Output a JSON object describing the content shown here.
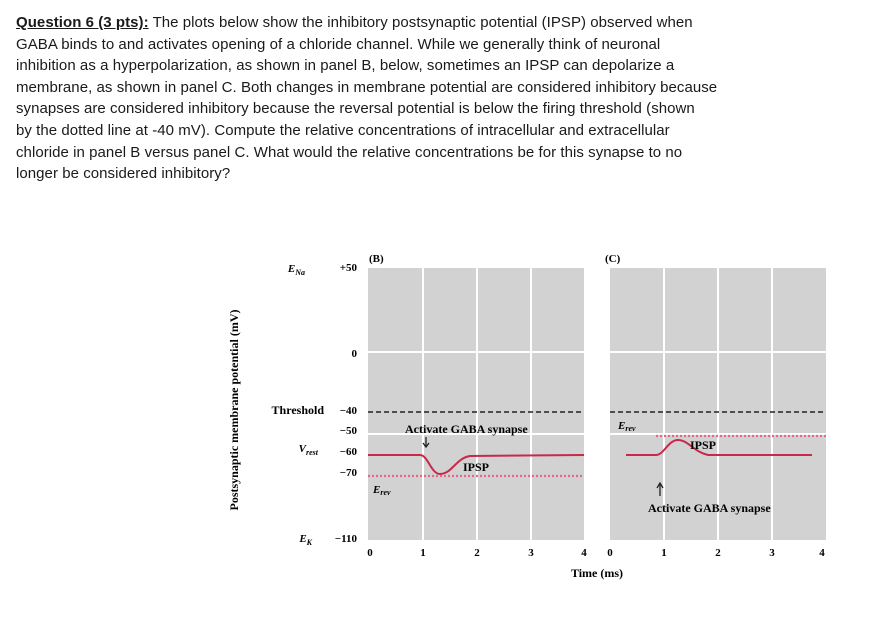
{
  "question": {
    "heading": "Question 6 (3 pts):",
    "lines": [
      " The plots below show the inhibitory postsynaptic potential (IPSP) observed when",
      "GABA binds to and activates opening of a chloride channel. While we generally think of neuronal",
      "inhibition as a hyperpolarization, as shown in panel B, below, sometimes an IPSP can depolarize a",
      "membrane, as shown in panel C. Both changes in membrane potential are considered inhibitory because",
      "synapses are considered inhibitory because the reversal potential is below the firing threshold (shown",
      "by the dotted line at -40 mV). Compute the relative concentrations of intracellular and extracellular",
      "chloride in panel B versus panel C. What would the relative concentrations be for this synapse to no",
      "longer be considered inhibitory?"
    ]
  },
  "figure": {
    "ylabel": "Postsynaptic membrane potential (mV)",
    "xlabel": "Time (ms)",
    "y_ticks": [
      {
        "prefix": "E",
        "sub": "Na",
        "value": "+50"
      },
      {
        "prefix": "",
        "sub": "",
        "value": "0"
      },
      {
        "prefix": "Threshold",
        "sub": "",
        "value": "−40"
      },
      {
        "prefix": "",
        "sub": "",
        "value": "−50"
      },
      {
        "prefix": "V",
        "sub": "rest",
        "value": "−60"
      },
      {
        "prefix": "",
        "sub": "",
        "value": "−70"
      },
      {
        "prefix": "E",
        "sub": "K",
        "value": "−110"
      }
    ],
    "panel_b": {
      "label": "(B)",
      "x_ticks": [
        "0",
        "1",
        "2",
        "3",
        "4"
      ],
      "annotation": "Activate GABA synapse",
      "trace_label": "IPSP",
      "erev_label": "E",
      "erev_sub": "rev"
    },
    "panel_c": {
      "label": "(C)",
      "x_ticks": [
        "0",
        "1",
        "2",
        "3",
        "4"
      ],
      "annotation": "Activate GABA synapse",
      "trace_label": "IPSP",
      "erev_label": "E",
      "erev_sub": "rev"
    },
    "colors": {
      "panel_bg": "#d2d2d2",
      "grid": "#ffffff",
      "trace": "#c8284a",
      "erev_line": "#e06a8a",
      "threshold": "#222222"
    }
  }
}
